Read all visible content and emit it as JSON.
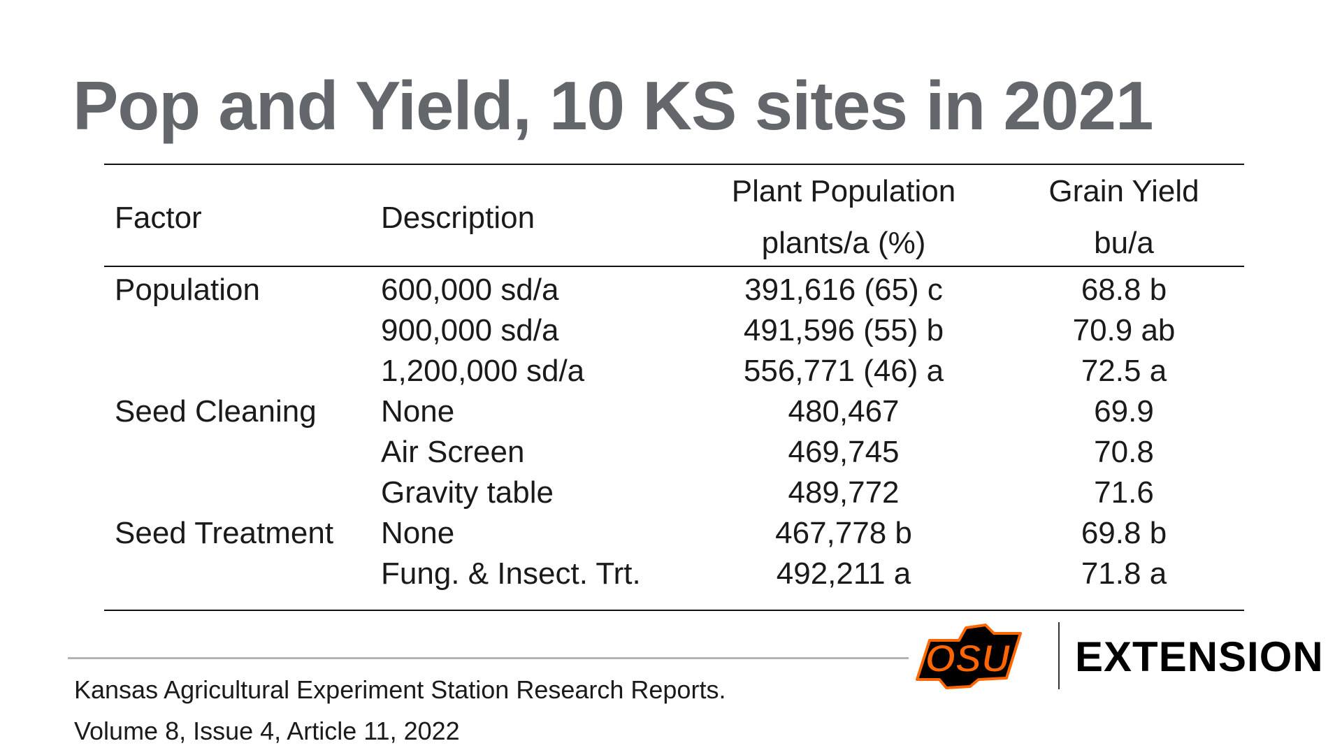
{
  "title": "Pop and Yield, 10 KS sites in 2021",
  "table": {
    "headers": {
      "factor": "Factor",
      "description": "Description",
      "plant_population": "Plant Population",
      "plant_population_unit": "plants/a (%)",
      "grain_yield": "Grain Yield",
      "grain_yield_unit": "bu/a"
    },
    "rows": [
      {
        "factor": "Population",
        "description": "600,000 sd/a",
        "plant_population": "391,616 (65) c",
        "grain_yield": "68.8 b"
      },
      {
        "factor": "",
        "description": "900,000 sd/a",
        "plant_population": "491,596 (55) b",
        "grain_yield": "70.9 ab"
      },
      {
        "factor": "",
        "description": "1,200,000 sd/a",
        "plant_population": "556,771 (46) a",
        "grain_yield": "72.5 a"
      },
      {
        "factor": "Seed Cleaning",
        "description": "None",
        "plant_population": "480,467",
        "grain_yield": "69.9"
      },
      {
        "factor": "",
        "description": "Air Screen",
        "plant_population": "469,745",
        "grain_yield": "70.8"
      },
      {
        "factor": "",
        "description": "Gravity table",
        "plant_population": "489,772",
        "grain_yield": "71.6"
      },
      {
        "factor": "Seed Treatment",
        "description": "None",
        "plant_population": "467,778 b",
        "grain_yield": "69.8 b"
      },
      {
        "factor": "",
        "description": "Fung. & Insect. Trt.",
        "plant_population": "492,211 a",
        "grain_yield": "71.8 a"
      }
    ]
  },
  "footer": {
    "citation_line1": "Kansas Agricultural Experiment Station Research Reports.",
    "citation_line2": "Volume 8, Issue 4, Article 11, 2022"
  },
  "branding": {
    "logo_text": "OSU",
    "extension_label": "EXTENSION",
    "logo_orange": "#ff6600",
    "title_gray": "#63666a"
  }
}
